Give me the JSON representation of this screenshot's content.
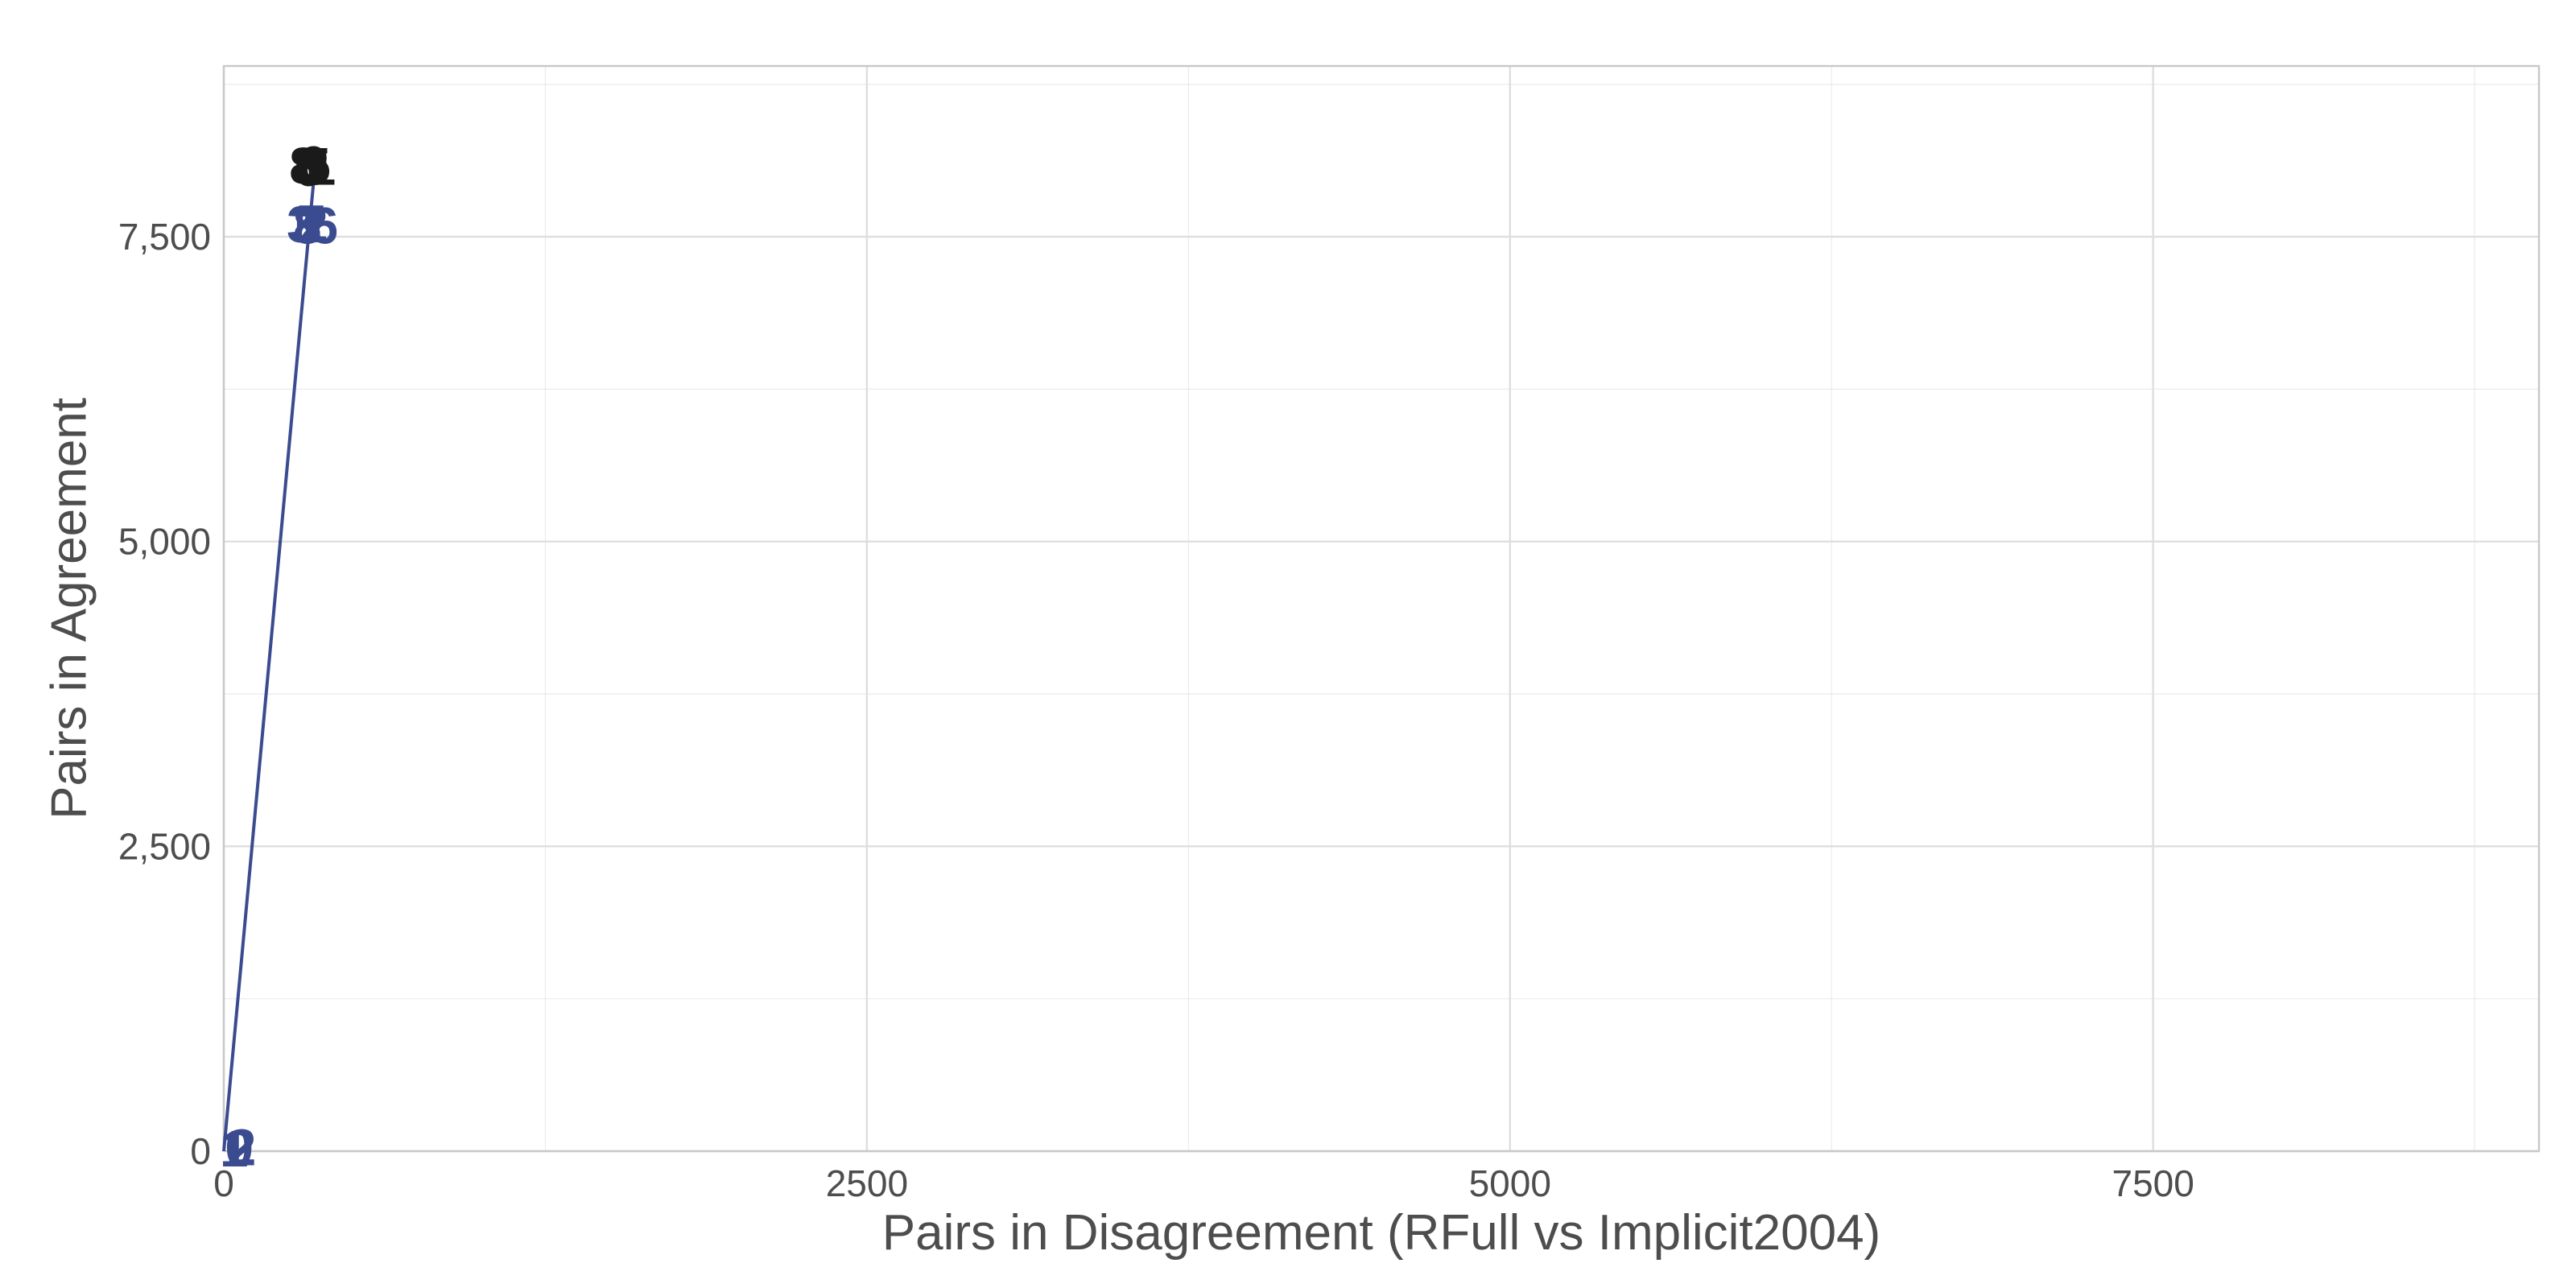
{
  "chart_data": {
    "type": "scatter",
    "title": "",
    "xlabel": "Pairs in Disagreement (RFull vs Implicit2004)",
    "ylabel": "Pairs in Agreement",
    "xlim": [
      0,
      9000
    ],
    "ylim": [
      0,
      8900
    ],
    "x_ticks": [
      {
        "value": 0,
        "label": "0"
      },
      {
        "value": 2500,
        "label": "2500"
      },
      {
        "value": 5000,
        "label": "5000"
      },
      {
        "value": 7500,
        "label": "7500"
      }
    ],
    "y_ticks": [
      {
        "value": 0,
        "label": "0"
      },
      {
        "value": 2500,
        "label": "2,500"
      },
      {
        "value": 5000,
        "label": "5,000"
      },
      {
        "value": 7500,
        "label": "7,500"
      }
    ],
    "grid": true,
    "legend": "none",
    "colors": {
      "dark": "#1a1a1a",
      "blue": "#3b4b8f",
      "line": "#3b4b8f",
      "grid": "#dedede",
      "panel_border": "#c8c8c8"
    },
    "line": {
      "x": [
        0,
        360
      ],
      "y": [
        0,
        8200
      ]
    },
    "series": [
      {
        "color_key": "dark",
        "points": [
          {
            "x": 310,
            "y": 8080,
            "label": "8"
          },
          {
            "x": 360,
            "y": 8080,
            "label": "5"
          },
          {
            "x": 330,
            "y": 8060,
            "label": "0"
          },
          {
            "x": 380,
            "y": 8070,
            "label": "1"
          },
          {
            "x": 345,
            "y": 8090,
            "label": "6"
          },
          {
            "x": 355,
            "y": 8070,
            "label": "3"
          }
        ]
      },
      {
        "color_key": "blue",
        "points": [
          {
            "x": 300,
            "y": 7600,
            "label": "3"
          },
          {
            "x": 350,
            "y": 7600,
            "label": "2"
          },
          {
            "x": 340,
            "y": 7610,
            "label": "7"
          },
          {
            "x": 390,
            "y": 7590,
            "label": "6"
          },
          {
            "x": 325,
            "y": 7590,
            "label": "8"
          },
          {
            "x": 60,
            "y": 25,
            "label": "0"
          },
          {
            "x": 40,
            "y": 20,
            "label": "1"
          },
          {
            "x": 70,
            "y": 30,
            "label": "2"
          }
        ]
      }
    ]
  }
}
